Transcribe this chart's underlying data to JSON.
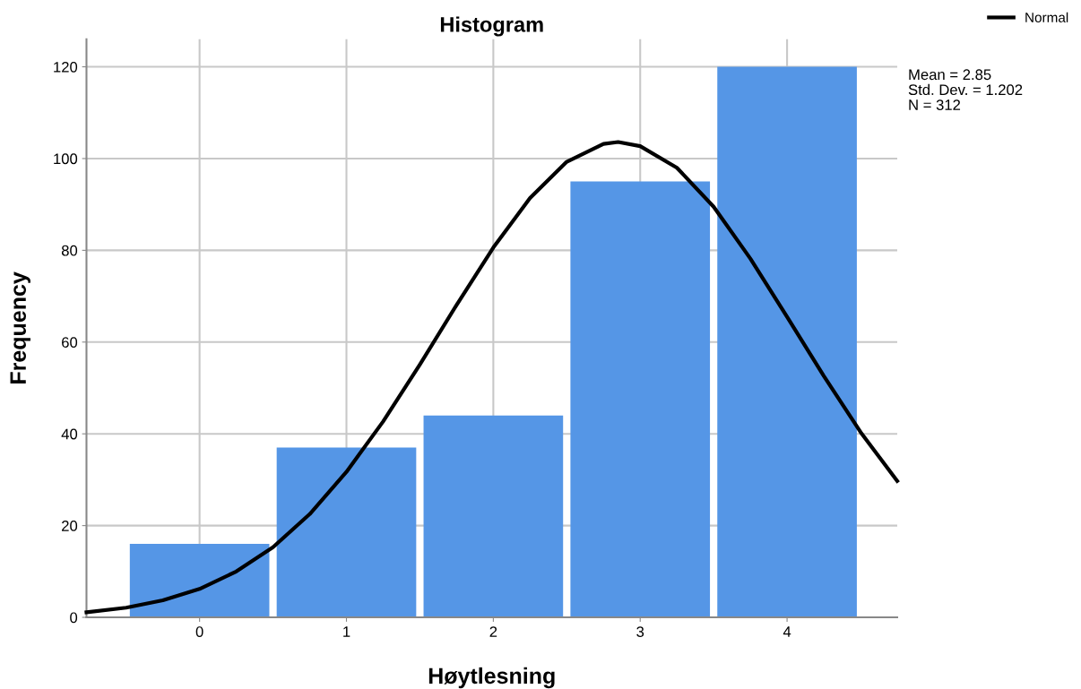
{
  "chart_data": {
    "type": "histogram",
    "title": "Histogram",
    "xlabel": "Høytlesning",
    "ylabel": "Frequency",
    "bins": [
      -0.5,
      0.5,
      1.5,
      2.5,
      3.5,
      4.5
    ],
    "series": [
      {
        "color": "#5596e6",
        "values": [
          16,
          37,
          44,
          95,
          120
        ]
      },
      {
        "type": "line",
        "name": "Normal",
        "color": "#000000",
        "x": [
          -0.77,
          -0.5,
          -0.25,
          0,
          0.25,
          0.5,
          0.75,
          1,
          1.25,
          1.5,
          1.75,
          2,
          2.25,
          2.5,
          2.75,
          2.85,
          3,
          3.25,
          3.5,
          3.75,
          4,
          4.25,
          4.5,
          4.75
        ],
        "values": [
          1.1,
          2.1,
          3.7,
          6.2,
          10.0,
          15.3,
          22.5,
          31.7,
          42.7,
          55.1,
          68.1,
          80.6,
          91.4,
          99.3,
          103.2,
          103.6,
          102.7,
          98.0,
          89.5,
          78.2,
          65.5,
          52.6,
          40.4,
          29.7
        ]
      }
    ],
    "xlim": [
      -0.77,
      4.75
    ],
    "xticks": [
      0,
      1,
      2,
      3,
      4
    ],
    "ylim": [
      0,
      126
    ],
    "yticks": [
      0,
      20,
      40,
      60,
      80,
      100,
      120
    ],
    "grid": true,
    "legend": "top right",
    "line_style": "solid",
    "marker": "none",
    "annotations": [
      "Mean = 2.85",
      "Std. Dev. = 1.202",
      "N = 312"
    ]
  }
}
